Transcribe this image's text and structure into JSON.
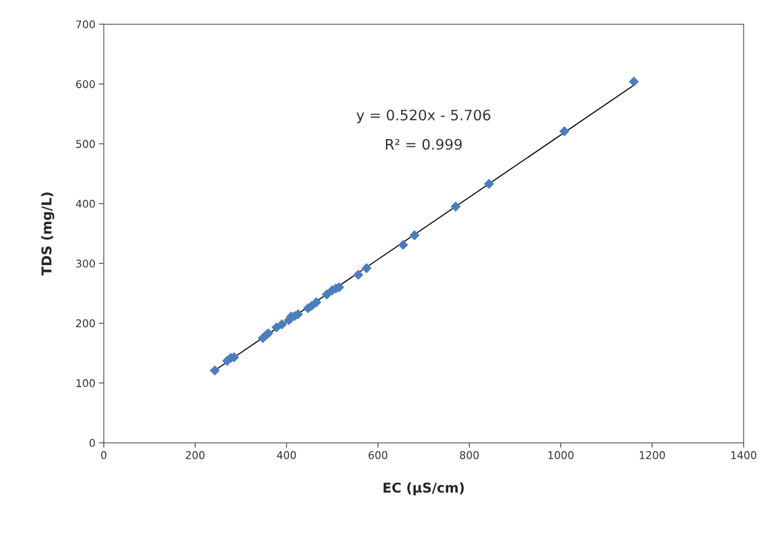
{
  "chart_data": {
    "type": "scatter",
    "xlabel": "EC (µS/cm)",
    "ylabel": "TDS (mg/L)",
    "xlim": [
      0,
      1400
    ],
    "xticks": [
      0,
      200,
      400,
      600,
      800,
      1000,
      1200,
      1400
    ],
    "ylim": [
      0,
      700
    ],
    "yticks": [
      0,
      100,
      200,
      300,
      400,
      500,
      600,
      700
    ],
    "grid": false,
    "series": [
      {
        "marker": "diamond",
        "color": "#4a7ebb",
        "x": [
          243,
          270,
          278,
          285,
          348,
          355,
          360,
          378,
          390,
          405,
          410,
          418,
          425,
          447,
          455,
          465,
          488,
          500,
          508,
          515,
          557,
          575,
          655,
          680,
          770,
          843,
          1008,
          1160
        ],
        "values": [
          121,
          137,
          142,
          143,
          175,
          180,
          183,
          193,
          198,
          205,
          211,
          212,
          215,
          225,
          229,
          235,
          248,
          255,
          258,
          260,
          281,
          292,
          331,
          347,
          395,
          433,
          521,
          604
        ]
      },
      {
        "type": "line",
        "color": "#000000",
        "line_style": "solid",
        "marker": "none",
        "x": [
          243,
          1160
        ],
        "values": [
          121,
          598
        ]
      }
    ],
    "annotations": [
      "y = 0.520x - 5.706",
      "R² = 0.999"
    ]
  }
}
